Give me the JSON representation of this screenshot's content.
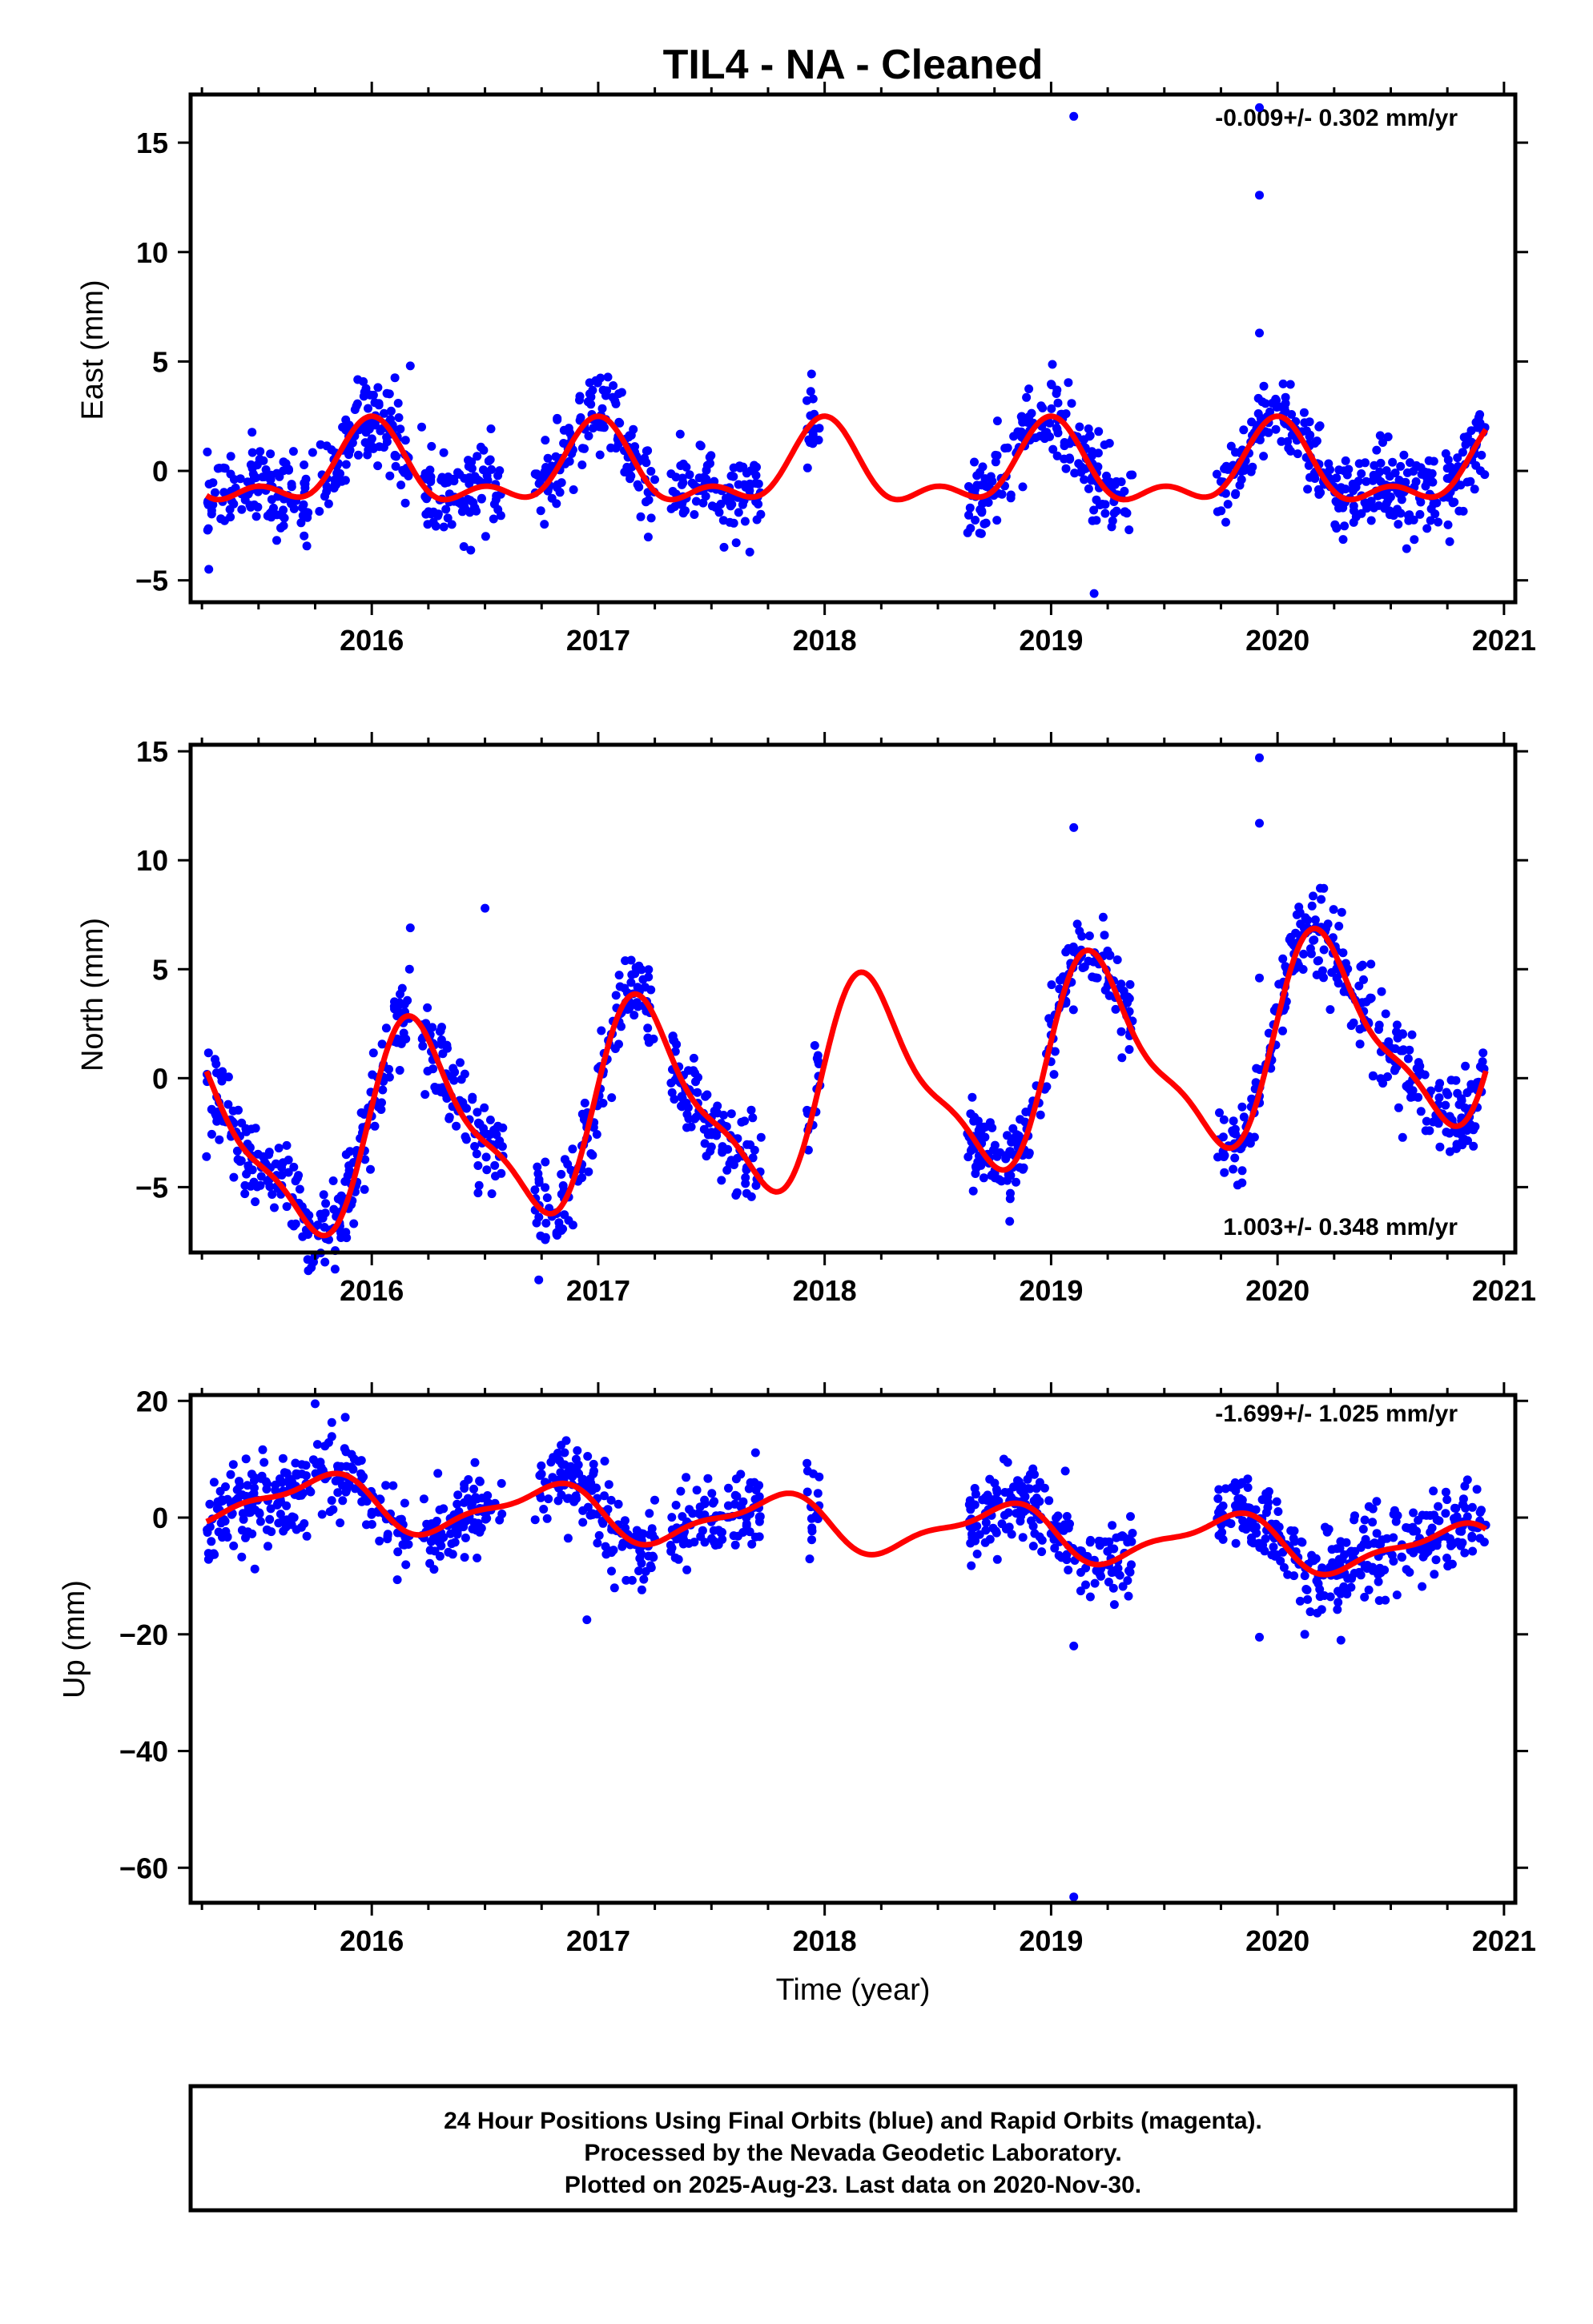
{
  "title": "TIL4  - NA - Cleaned",
  "colors": {
    "final_orbits": "#0000ff",
    "model": "#ff0000",
    "frame": "#000000"
  },
  "footer": {
    "line1": "24 Hour Positions Using Final Orbits (blue) and Rapid Orbits (magenta).",
    "line2": "Processed by the Nevada Geodetic Laboratory.",
    "line3": "Plotted on 2025-Aug-23. Last data on 2020-Nov-30."
  },
  "chart_data": [
    {
      "type": "scatter",
      "ylabel": "East (mm)",
      "xlabel": "",
      "rate": "-0.009+/- 0.302 mm/yr",
      "xlim": [
        2015.2,
        2021.05
      ],
      "ylim": [
        -6.0,
        17.2
      ],
      "xticks": [
        2016,
        2017,
        2018,
        2019,
        2020,
        2021
      ],
      "yticks": [
        -5,
        0,
        5,
        10,
        15
      ],
      "data_segments": [
        [
          2015.27,
          2016.17
        ],
        [
          2016.22,
          2016.58
        ],
        [
          2016.72,
          2017.25
        ],
        [
          2017.32,
          2017.72
        ],
        [
          2017.92,
          2017.98
        ],
        [
          2018.63,
          2019.36
        ],
        [
          2019.73,
          2020.92
        ]
      ],
      "model": {
        "offset": 0.0,
        "annual_amp": 1.6,
        "annual_phase": 1.6,
        "semi_amp": 0.9,
        "semi_phase": 1.55
      },
      "scatter": 0.95,
      "outliers": [
        {
          "x": 2019.1,
          "y": 16.2
        },
        {
          "x": 2019.92,
          "y": 16.6
        },
        {
          "x": 2019.92,
          "y": 12.6
        },
        {
          "x": 2019.92,
          "y": 6.3
        },
        {
          "x": 2016.17,
          "y": 4.8
        },
        {
          "x": 2019.19,
          "y": -5.6
        }
      ],
      "series": [
        {
          "name": "",
          "values": []
        }
      ]
    },
    {
      "type": "scatter",
      "ylabel": "North (mm)",
      "xlabel": "",
      "rate": "1.003+/- 0.348 mm/yr",
      "xlim": [
        2015.2,
        2021.05
      ],
      "ylim": [
        -8.0,
        15.3
      ],
      "xticks": [
        2016,
        2017,
        2018,
        2019,
        2020,
        2021
      ],
      "yticks": [
        -5,
        0,
        5,
        10,
        15
      ],
      "data_segments": [
        [
          2015.27,
          2016.17
        ],
        [
          2016.22,
          2016.58
        ],
        [
          2016.72,
          2017.25
        ],
        [
          2017.32,
          2017.72
        ],
        [
          2017.92,
          2017.98
        ],
        [
          2018.63,
          2019.36
        ],
        [
          2019.73,
          2020.92
        ]
      ],
      "model": {
        "offset": -0.5,
        "annual_amp": 4.3,
        "annual_phase": 0.25,
        "semi_amp": 1.3,
        "semi_phase": 0.1,
        "trend": 1.003,
        "t0": 2018.0
      },
      "scatter": 1.0,
      "outliers": [
        {
          "x": 2019.1,
          "y": 11.5
        },
        {
          "x": 2019.92,
          "y": 14.7
        },
        {
          "x": 2019.92,
          "y": 11.7
        },
        {
          "x": 2019.92,
          "y": 4.6
        },
        {
          "x": 2016.17,
          "y": 6.9
        },
        {
          "x": 2016.5,
          "y": 7.8
        },
        {
          "x": 2019.1,
          "y": 5.8
        },
        {
          "x": 2015.27,
          "y": -3.6
        }
      ],
      "series": [
        {
          "name": "",
          "values": []
        }
      ]
    },
    {
      "type": "scatter",
      "ylabel": "Up (mm)",
      "xlabel": "Time (year)",
      "rate": "-1.699+/- 1.025 mm/yr",
      "xlim": [
        2015.2,
        2021.05
      ],
      "ylim": [
        -66.0,
        21.0
      ],
      "xticks": [
        2016,
        2017,
        2018,
        2019,
        2020,
        2021
      ],
      "yticks": [
        -60,
        -40,
        -20,
        0,
        20
      ],
      "data_segments": [
        [
          2015.27,
          2016.17
        ],
        [
          2016.22,
          2016.58
        ],
        [
          2016.72,
          2017.25
        ],
        [
          2017.32,
          2017.72
        ],
        [
          2017.92,
          2017.98
        ],
        [
          2018.63,
          2019.36
        ],
        [
          2019.73,
          2020.92
        ]
      ],
      "model": {
        "offset": -1.0,
        "annual_amp": 4.2,
        "annual_phase": 3.0,
        "semi_amp": 1.5,
        "semi_phase": 2.8,
        "trend": -1.699,
        "t0": 2018.0
      },
      "scatter": 3.5,
      "outliers": [
        {
          "x": 2019.1,
          "y": -65.0
        },
        {
          "x": 2019.1,
          "y": -22.0
        },
        {
          "x": 2016.95,
          "y": -17.5
        },
        {
          "x": 2019.92,
          "y": -20.5
        },
        {
          "x": 2020.12,
          "y": -20.0
        },
        {
          "x": 2020.28,
          "y": -21.0
        },
        {
          "x": 2015.75,
          "y": 19.5
        }
      ],
      "series": [
        {
          "name": "",
          "values": []
        }
      ]
    }
  ]
}
